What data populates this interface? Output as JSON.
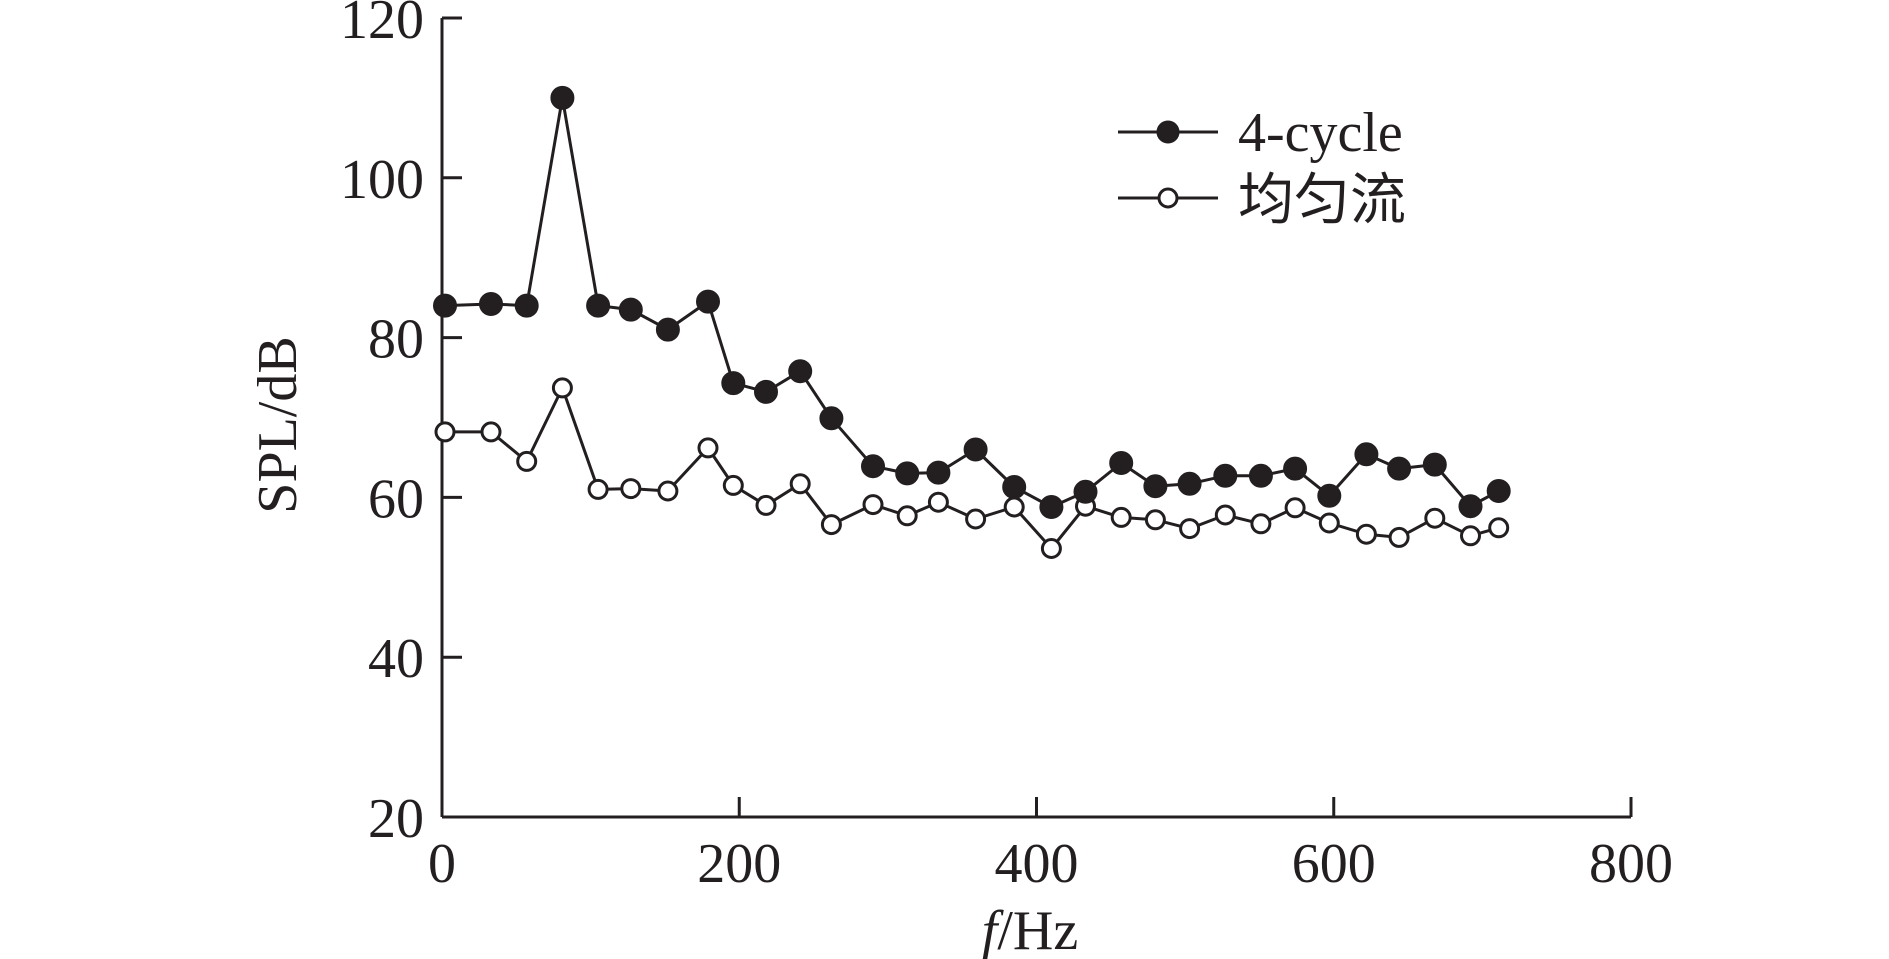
{
  "chart_data": {
    "type": "line",
    "xlabel_italic": "f",
    "xlabel_rest": "/Hz",
    "ylabel": "SPL/dB",
    "xlim": [
      0,
      800
    ],
    "ylim": [
      20,
      120
    ],
    "xticks": [
      "0",
      "200",
      "400",
      "600",
      "800"
    ],
    "yticks": [
      "20",
      "40",
      "60",
      "80",
      "100",
      "120"
    ],
    "grid": false,
    "legend_position": "top-right",
    "series": [
      {
        "name": "4-cycle",
        "marker": "filled-circle",
        "color": "#231f20",
        "x": [
          2,
          33,
          57,
          81,
          105,
          127,
          152,
          179,
          196,
          218,
          241,
          262,
          290,
          313,
          334,
          359,
          385,
          410,
          433,
          457,
          480,
          503,
          527,
          551,
          574,
          597,
          622,
          644,
          668,
          692,
          711
        ],
        "y": [
          84.0,
          84.2,
          84.0,
          110.0,
          84.0,
          83.5,
          81.0,
          84.5,
          74.3,
          73.2,
          75.8,
          69.9,
          63.9,
          63.0,
          63.1,
          66.0,
          61.3,
          58.8,
          60.7,
          64.3,
          61.4,
          61.7,
          62.7,
          62.7,
          63.6,
          60.2,
          65.4,
          63.6,
          64.1,
          58.9,
          60.8
        ]
      },
      {
        "name": "均匀流",
        "marker": "open-circle",
        "color": "#231f20",
        "x": [
          2,
          33,
          57,
          81,
          105,
          127,
          152,
          179,
          196,
          218,
          241,
          262,
          290,
          313,
          334,
          359,
          385,
          410,
          433,
          457,
          480,
          503,
          527,
          551,
          574,
          597,
          622,
          644,
          668,
          692,
          711
        ],
        "y": [
          68.2,
          68.2,
          64.5,
          73.7,
          61.0,
          61.1,
          60.8,
          66.2,
          61.5,
          59.0,
          61.7,
          56.6,
          59.1,
          57.7,
          59.4,
          57.3,
          58.8,
          53.6,
          58.9,
          57.5,
          57.2,
          56.1,
          57.8,
          56.7,
          58.7,
          56.8,
          55.4,
          55.0,
          57.4,
          55.2,
          56.2
        ]
      }
    ]
  }
}
